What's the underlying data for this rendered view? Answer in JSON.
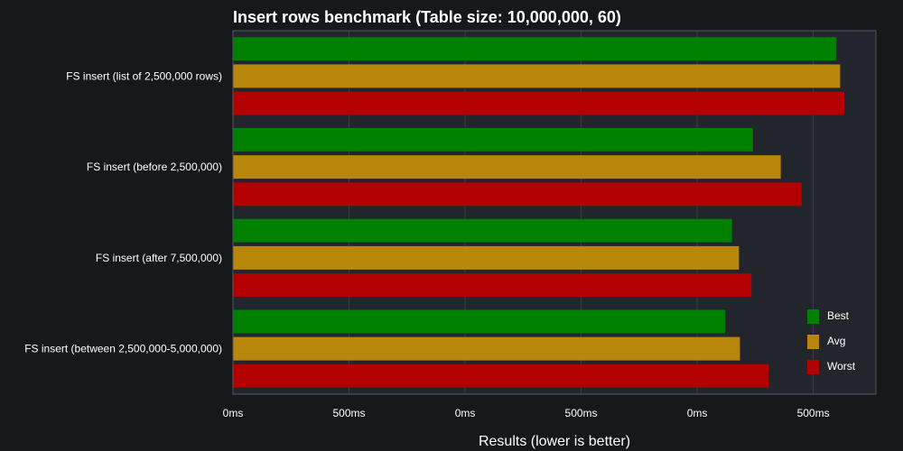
{
  "colors": {
    "background": "#16191c",
    "plot_background": "#22252b",
    "grid": "#3a3d42",
    "text": "#ffffff",
    "best": "#008000",
    "avg": "#b8860b",
    "worst": "#b30000"
  },
  "chart_data": {
    "type": "bar",
    "orientation": "horizontal",
    "title": "Insert rows benchmark (Table size: 10,000,000, 60)",
    "xlabel": "Results (lower is better)",
    "ylabel": "",
    "categories": [
      "FS insert (list of 2,500,000 rows)",
      "FS insert (before 2,500,000)",
      "FS insert (after 7,500,000)",
      "FS insert (between 2,500,000-5,000,000)"
    ],
    "series": [
      {
        "name": "Best",
        "color": "#008000",
        "values": [
          1300,
          1120,
          1075,
          1060
        ]
      },
      {
        "name": "Avg",
        "color": "#b8860b",
        "values": [
          1308,
          1180,
          1090,
          1092
        ]
      },
      {
        "name": "Worst",
        "color": "#b30000",
        "values": [
          1317,
          1225,
          1117,
          1154
        ]
      }
    ],
    "xlim": [
      0,
      1385
    ],
    "x_ticks": [
      {
        "value": 0,
        "label": "0ms"
      },
      {
        "value": 250,
        "label": "500ms"
      },
      {
        "value": 500,
        "label": "0ms"
      },
      {
        "value": 750,
        "label": "500ms"
      },
      {
        "value": 1000,
        "label": "0ms"
      },
      {
        "value": 1250,
        "label": "500ms"
      }
    ],
    "grid": true,
    "legend_position": "bottom-right"
  }
}
